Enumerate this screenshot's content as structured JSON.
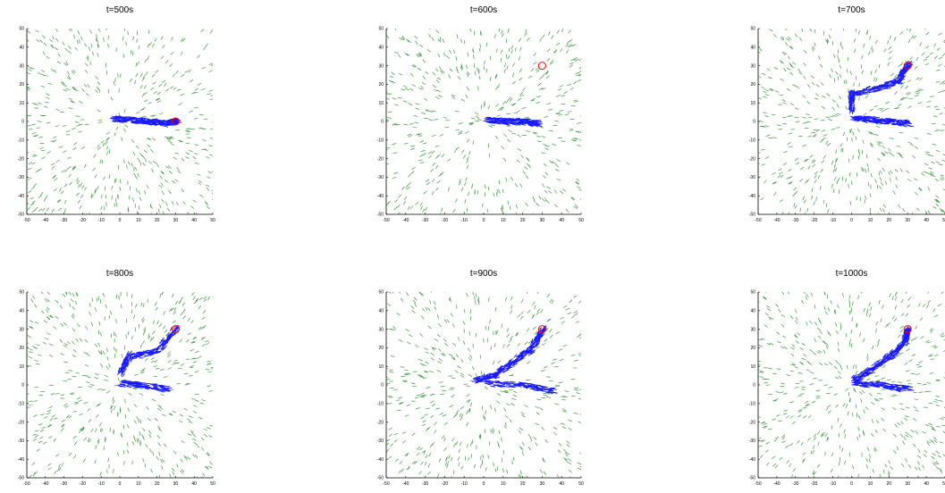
{
  "figure": {
    "colors": {
      "background": "#ffffff",
      "field_arrows": "#1f8a1f",
      "trail_segments": "#1a1aff",
      "target_marker": "#ff0000"
    }
  },
  "chart_data": [
    {
      "type": "scatter",
      "title": "t=500s",
      "xlim": [
        -50,
        50
      ],
      "ylim": [
        -50,
        50
      ],
      "x_ticks": [
        -50,
        -40,
        -30,
        -20,
        -10,
        0,
        10,
        20,
        30,
        40,
        50
      ],
      "y_ticks": [
        -50,
        -40,
        -30,
        -20,
        -10,
        0,
        10,
        20,
        30,
        40,
        50
      ],
      "target": {
        "x": 30,
        "y": 0
      },
      "series": [
        {
          "values_path": [
            [
              -5,
              1
            ],
            [
              5,
              1
            ],
            [
              15,
              0
            ],
            [
              25,
              -1
            ],
            [
              30,
              0
            ]
          ]
        }
      ]
    },
    {
      "type": "scatter",
      "title": "t=600s",
      "xlim": [
        -50,
        50
      ],
      "ylim": [
        -50,
        50
      ],
      "x_ticks": [
        -50,
        -40,
        -30,
        -20,
        -10,
        0,
        10,
        20,
        30,
        40,
        50
      ],
      "y_ticks": [
        -50,
        -40,
        -30,
        -20,
        -10,
        0,
        10,
        20,
        30,
        40,
        50
      ],
      "target": {
        "x": 30,
        "y": 30
      },
      "series": [
        {
          "values_path": [
            [
              0,
              1
            ],
            [
              10,
              0
            ],
            [
              20,
              0
            ],
            [
              27,
              -1
            ]
          ]
        }
      ]
    },
    {
      "type": "scatter",
      "title": "t=700s",
      "xlim": [
        -50,
        50
      ],
      "ylim": [
        -50,
        50
      ],
      "x_ticks": [
        -50,
        -40,
        -30,
        -20,
        -10,
        0,
        10,
        20,
        30,
        40,
        50
      ],
      "y_ticks": [
        -50,
        -40,
        -30,
        -20,
        -10,
        0,
        10,
        20,
        30,
        40,
        50
      ],
      "target": {
        "x": 30,
        "y": 30
      },
      "series": [
        {
          "values_path": [
            [
              0,
              2
            ],
            [
              10,
              1
            ],
            [
              20,
              0
            ],
            [
              30,
              -1
            ]
          ]
        },
        {
          "values_path": [
            [
              0,
              5
            ],
            [
              0,
              15
            ],
            [
              15,
              18
            ],
            [
              25,
              22
            ],
            [
              30,
              30
            ]
          ]
        }
      ]
    },
    {
      "type": "scatter",
      "title": "t=800s",
      "xlim": [
        -50,
        50
      ],
      "ylim": [
        -50,
        50
      ],
      "x_ticks": [
        -50,
        -40,
        -30,
        -20,
        -10,
        0,
        10,
        20,
        30,
        40,
        50
      ],
      "y_ticks": [
        -50,
        -40,
        -30,
        -20,
        -10,
        0,
        10,
        20,
        30,
        40,
        50
      ],
      "target": {
        "x": 30,
        "y": 30
      },
      "series": [
        {
          "values_path": [
            [
              0,
              1
            ],
            [
              10,
              0
            ],
            [
              25,
              -2
            ]
          ]
        },
        {
          "values_path": [
            [
              0,
              5
            ],
            [
              5,
              15
            ],
            [
              20,
              18
            ],
            [
              30,
              30
            ]
          ]
        }
      ]
    },
    {
      "type": "scatter",
      "title": "t=900s",
      "xlim": [
        -50,
        50
      ],
      "ylim": [
        -50,
        50
      ],
      "x_ticks": [
        -50,
        -40,
        -30,
        -20,
        -10,
        0,
        10,
        20,
        30,
        40,
        50
      ],
      "y_ticks": [
        -50,
        -40,
        -30,
        -20,
        -10,
        0,
        10,
        20,
        30,
        40,
        50
      ],
      "target": {
        "x": 30,
        "y": 30
      },
      "series": [
        {
          "values_path": [
            [
              -5,
              2
            ],
            [
              5,
              5
            ],
            [
              15,
              12
            ],
            [
              25,
              20
            ],
            [
              30,
              29
            ]
          ]
        },
        {
          "values_path": [
            [
              0,
              1
            ],
            [
              20,
              0
            ],
            [
              35,
              -3
            ]
          ]
        }
      ]
    },
    {
      "type": "scatter",
      "title": "t=1000s",
      "xlim": [
        -50,
        50
      ],
      "ylim": [
        -50,
        50
      ],
      "x_ticks": [
        -50,
        -40,
        -30,
        -20,
        -10,
        0,
        10,
        20,
        30,
        40,
        50
      ],
      "y_ticks": [
        -50,
        -40,
        -30,
        -20,
        -10,
        0,
        10,
        20,
        30,
        40,
        50
      ],
      "target": {
        "x": 30,
        "y": 30
      },
      "series": [
        {
          "values_path": [
            [
              0,
              2
            ],
            [
              10,
              8
            ],
            [
              20,
              15
            ],
            [
              28,
              22
            ],
            [
              30,
              29
            ]
          ]
        },
        {
          "values_path": [
            [
              0,
              1
            ],
            [
              15,
              0
            ],
            [
              30,
              -2
            ]
          ]
        }
      ]
    }
  ]
}
